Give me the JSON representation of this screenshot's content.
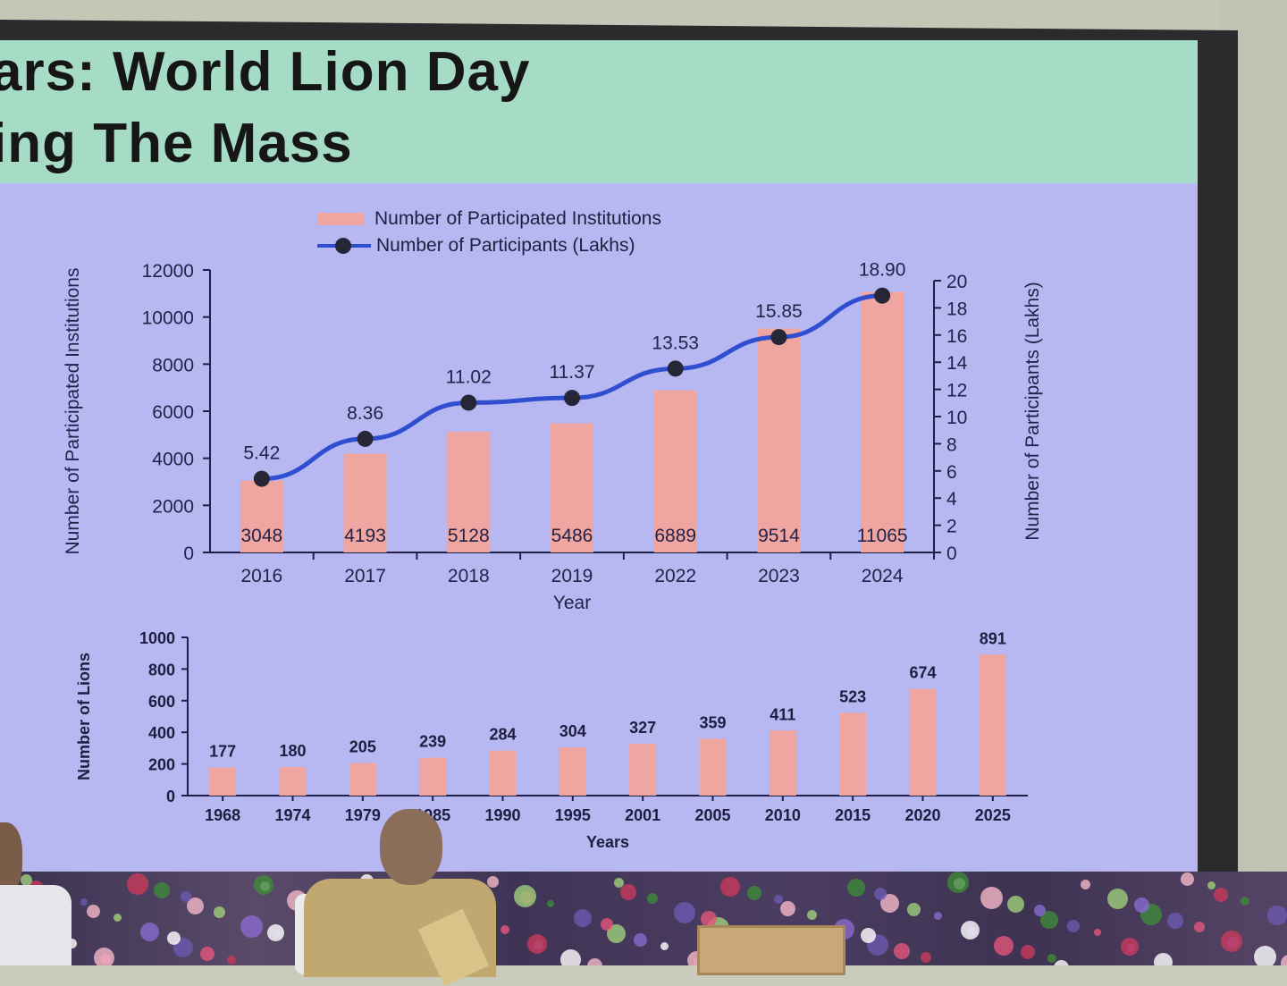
{
  "slide": {
    "title_line1": "ars: World Lion Day",
    "title_line2": "ing The Mass"
  },
  "legend": {
    "bar_label": "Number of Participated Institutions",
    "line_label": "Number of Participants (Lakhs)"
  },
  "colors": {
    "bar": "#f0a6a0",
    "line": "#2f4fd0",
    "marker": "#262636",
    "axis": "#1f1f4a",
    "screen_bg": "#b7b8f2",
    "title_band": "#a6dcc6"
  },
  "chart_data": [
    {
      "type": "bar+line",
      "title": "",
      "categories": [
        "2016",
        "2017",
        "2018",
        "2019",
        "2022",
        "2023",
        "2024"
      ],
      "series": [
        {
          "name": "Number of Participated Institutions",
          "type": "bar",
          "axis": "left",
          "values": [
            3048,
            4193,
            5128,
            5486,
            6889,
            9514,
            11065
          ]
        },
        {
          "name": "Number of Participants (Lakhs)",
          "type": "line",
          "axis": "right",
          "values": [
            5.42,
            8.36,
            11.02,
            11.37,
            13.53,
            15.85,
            18.9
          ]
        }
      ],
      "bar_labels": [
        "3048",
        "4193",
        "5128",
        "5486",
        "6889",
        "9514",
        "11065"
      ],
      "line_labels": [
        "5.42",
        "8.36",
        "11.02",
        "11.37",
        "13.53",
        "15.85",
        "18.90"
      ],
      "xlabel": "Year",
      "ylabel": "Number of Participated Institutions",
      "y2label": "Number of Participants (Lakhs)",
      "ylim": [
        0,
        12000
      ],
      "y2lim": [
        0,
        20
      ],
      "yticks": [
        "0",
        "2000",
        "4000",
        "6000",
        "8000",
        "10000",
        "12000"
      ],
      "y2ticks": [
        "0",
        "2",
        "4",
        "6",
        "8",
        "10",
        "12",
        "14",
        "16",
        "18",
        "20"
      ],
      "legend_position": "top"
    },
    {
      "type": "bar",
      "title": "",
      "categories": [
        "1968",
        "1974",
        "1979",
        "1985",
        "1990",
        "1995",
        "2001",
        "2005",
        "2010",
        "2015",
        "2020",
        "2025"
      ],
      "category_labels_visible": [
        "1968",
        "1974",
        "1979",
        "85",
        "1990",
        "1995",
        "2001",
        "2005",
        "2010",
        "2015",
        "2020",
        "2025"
      ],
      "values": [
        177,
        180,
        205,
        239,
        284,
        304,
        327,
        359,
        411,
        523,
        674,
        891
      ],
      "value_labels": [
        "177",
        "180",
        "205",
        "239",
        "284",
        "304",
        "327",
        "359",
        "411",
        "523",
        "674",
        "891"
      ],
      "xlabel": "Years",
      "ylabel": "Number of Lions",
      "ylim": [
        0,
        1000
      ],
      "yticks": [
        "0",
        "200",
        "400",
        "600",
        "800",
        "1000"
      ]
    }
  ]
}
